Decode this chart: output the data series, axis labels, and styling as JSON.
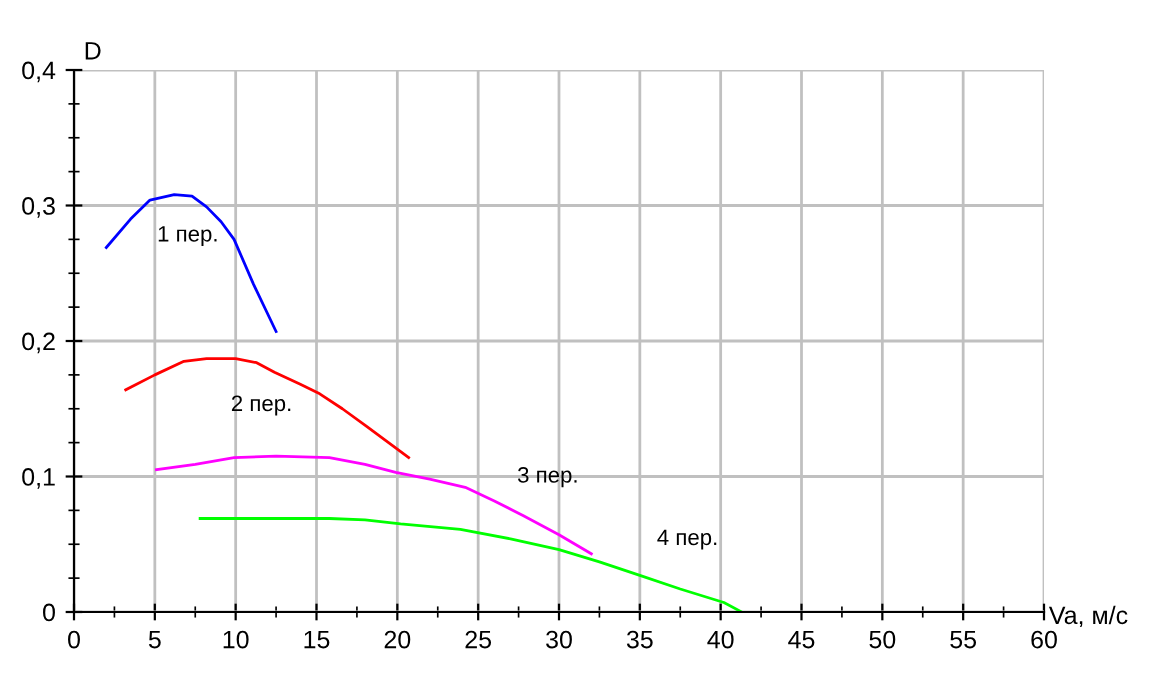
{
  "chart_data": {
    "type": "line",
    "xlabel": "Va, м/с",
    "ylabel": "D",
    "series": [
      {
        "name": "1 пер.",
        "color": "#0000ff",
        "x": [
          2,
          3.5,
          4.7,
          6.2,
          7.3,
          8.2,
          9.1,
          9.9,
          11.1,
          12.5
        ],
        "values": [
          0.269,
          0.29,
          0.304,
          0.308,
          0.307,
          0.299,
          0.288,
          0.275,
          0.242,
          0.207
        ]
      },
      {
        "name": "2 пер.",
        "color": "#ff0000",
        "x": [
          3.2,
          5,
          6.8,
          8.2,
          10,
          11.3,
          12.4,
          14,
          15.2,
          16.6,
          18.1,
          20.7
        ],
        "values": [
          0.164,
          0.175,
          0.185,
          0.187,
          0.187,
          0.184,
          0.177,
          0.168,
          0.161,
          0.15,
          0.137,
          0.114
        ]
      },
      {
        "name": "3 пер.",
        "color": "#ff00ff",
        "x": [
          5.1,
          7.5,
          9.9,
          12.5,
          15.8,
          18,
          19.9,
          22,
          24.2,
          26,
          27.8,
          30,
          32
        ],
        "values": [
          0.105,
          0.109,
          0.114,
          0.115,
          0.114,
          0.109,
          0.103,
          0.098,
          0.092,
          0.082,
          0.071,
          0.057,
          0.043
        ]
      },
      {
        "name": "4 пер.",
        "color": "#00ff00",
        "x": [
          7.8,
          12,
          15.8,
          18,
          20.2,
          23.9,
          27,
          30,
          32.5,
          35,
          37.5,
          40.2,
          41.3
        ],
        "values": [
          0.069,
          0.069,
          0.069,
          0.068,
          0.065,
          0.061,
          0.054,
          0.046,
          0.037,
          0.027,
          0.017,
          0.007,
          0
        ]
      }
    ],
    "xlim": [
      0,
      60
    ],
    "ylim": [
      0,
      0.4
    ],
    "xticks": [
      0,
      5,
      10,
      15,
      20,
      25,
      30,
      35,
      40,
      45,
      50,
      55,
      60
    ],
    "yticks": [
      {
        "value": 0,
        "label": "0"
      },
      {
        "value": 0.1,
        "label": "0,1"
      },
      {
        "value": 0.2,
        "label": "0,2"
      },
      {
        "value": 0.3,
        "label": "0,3"
      },
      {
        "value": 0.4,
        "label": "0,4"
      }
    ],
    "grid": true,
    "legend": false
  }
}
